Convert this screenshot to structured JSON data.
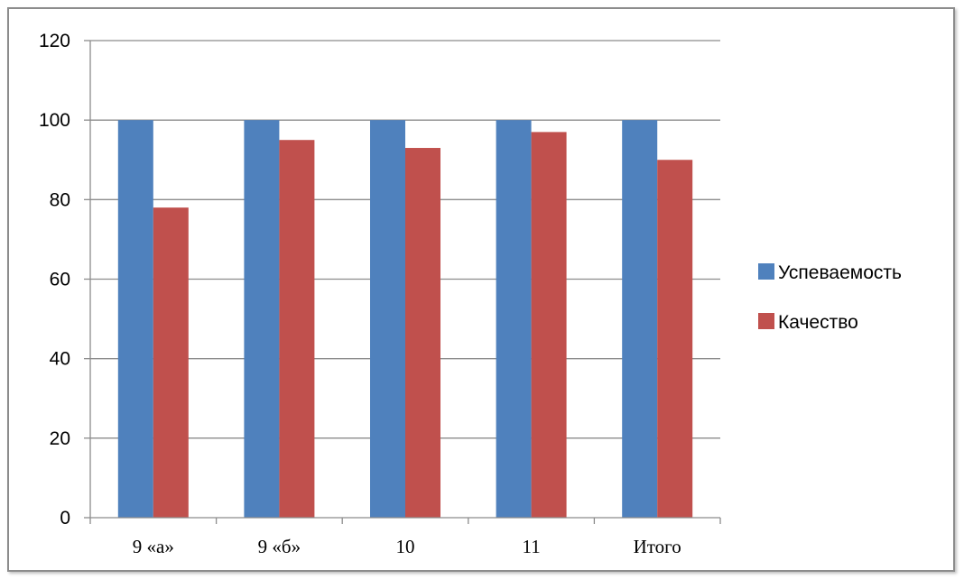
{
  "chart_data": {
    "type": "bar",
    "categories": [
      "9 «а»",
      "9 «б»",
      "10",
      "11",
      "Итого"
    ],
    "series": [
      {
        "name": "Успеваемость",
        "color": "#4f81bd",
        "values": [
          100,
          100,
          100,
          100,
          100
        ]
      },
      {
        "name": "Качество",
        "color": "#c0504d",
        "values": [
          78,
          95,
          93,
          97,
          90
        ]
      }
    ],
    "ylim": [
      0,
      120
    ],
    "yticks": [
      0,
      20,
      40,
      60,
      80,
      100,
      120
    ],
    "grid": true,
    "legend_position": "right"
  }
}
